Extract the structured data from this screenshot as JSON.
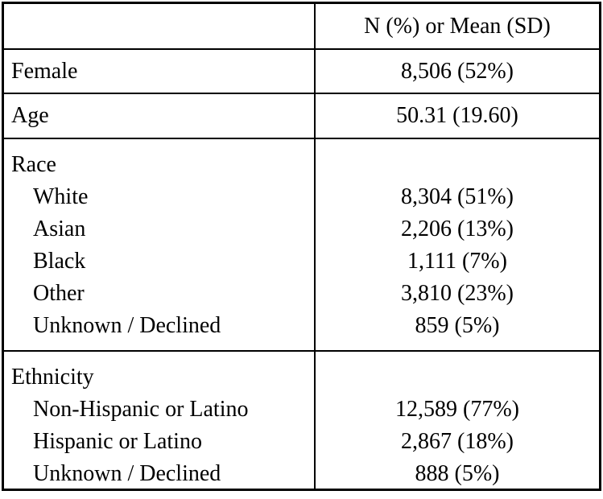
{
  "header": {
    "label_col": "",
    "value_col": "N (%) or Mean (SD)"
  },
  "rows": {
    "female": {
      "label": "Female",
      "value": "8,506 (52%)"
    },
    "age": {
      "label": "Age",
      "value": "50.31 (19.60)"
    },
    "race": {
      "label": "Race",
      "items": [
        {
          "label": "White",
          "value": "8,304 (51%)"
        },
        {
          "label": "Asian",
          "value": "2,206 (13%)"
        },
        {
          "label": "Black",
          "value": "1,111 (7%)"
        },
        {
          "label": "Other",
          "value": "3,810 (23%)"
        },
        {
          "label": "Unknown / Declined",
          "value": "859 (5%)"
        }
      ]
    },
    "ethnicity": {
      "label": "Ethnicity",
      "items": [
        {
          "label": "Non-Hispanic or Latino",
          "value": "12,589 (77%)"
        },
        {
          "label": "Hispanic or Latino",
          "value": "2,867 (18%)"
        },
        {
          "label": "Unknown / Declined",
          "value": "888 (5%)"
        }
      ]
    }
  },
  "chart_data": {
    "type": "table",
    "columns": [
      "",
      "N (%) or Mean (SD)"
    ],
    "rows": [
      [
        "Female",
        "8,506 (52%)"
      ],
      [
        "Age",
        "50.31 (19.60)"
      ],
      [
        "Race",
        ""
      ],
      [
        "White",
        "8,304 (51%)"
      ],
      [
        "Asian",
        "2,206 (13%)"
      ],
      [
        "Black",
        "1,111 (7%)"
      ],
      [
        "Other",
        "3,810 (23%)"
      ],
      [
        "Unknown / Declined",
        "859 (5%)"
      ],
      [
        "Ethnicity",
        ""
      ],
      [
        "Non-Hispanic or Latino",
        "12,589 (77%)"
      ],
      [
        "Hispanic or Latino",
        "2,867 (18%)"
      ],
      [
        "Unknown / Declined",
        "888 (5%)"
      ]
    ]
  }
}
